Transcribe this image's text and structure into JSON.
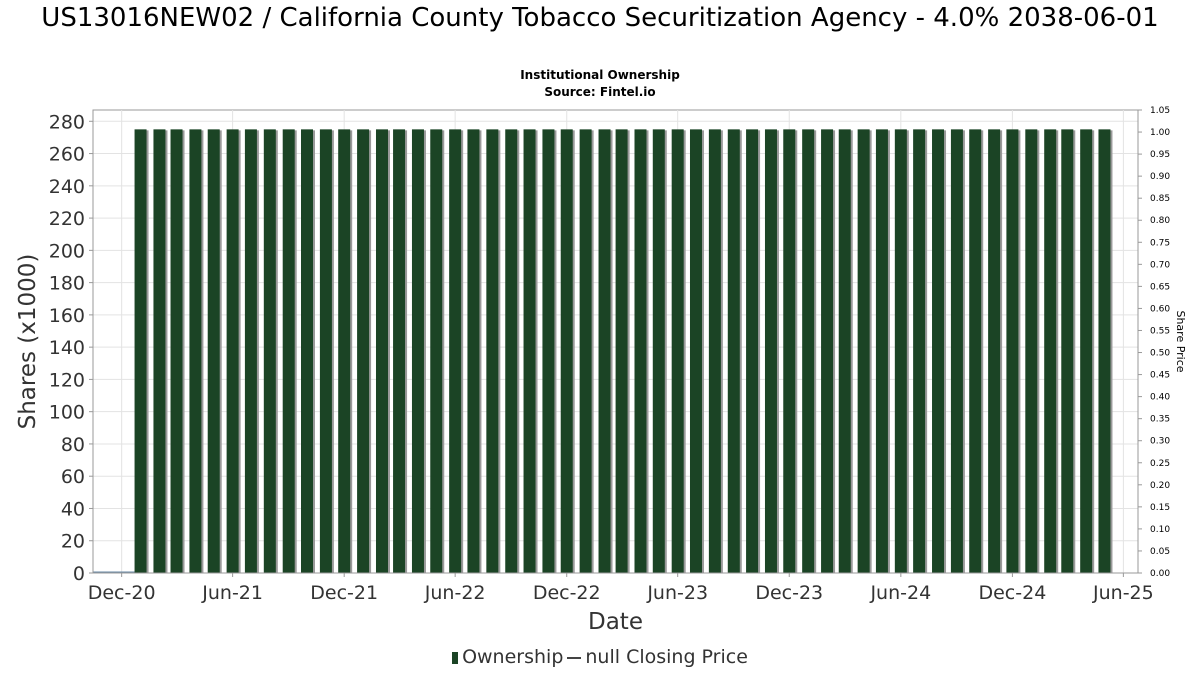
{
  "title": "US13016NEW02 / California County Tobacco Securitization Agency - 4.0% 2038-06-01",
  "subtitle_line1": "Institutional Ownership",
  "subtitle_line2": "Source: Fintel.io",
  "legend": {
    "ownership_label": "Ownership",
    "closing_price_label": "null Closing Price"
  },
  "colors": {
    "bar": "#1b4425",
    "bar_shadow": "#9a9a9a",
    "grid": "#e3e3e3",
    "axis": "#999999"
  },
  "chart_data": {
    "type": "bar",
    "title": "US13016NEW02 / California County Tobacco Securitization Agency - 4.0% 2038-06-01",
    "xlabel": "Date",
    "ylabel": "Shares (x1000)",
    "y2label": "Share Price",
    "ylim": [
      0,
      287
    ],
    "y2lim": [
      0,
      1.05
    ],
    "yticks": [
      0,
      20,
      40,
      60,
      80,
      100,
      120,
      140,
      160,
      180,
      200,
      220,
      240,
      260,
      280
    ],
    "y2ticks": [
      "0.00",
      "0.05",
      "0.10",
      "0.15",
      "0.20",
      "0.25",
      "0.30",
      "0.35",
      "0.40",
      "0.45",
      "0.50",
      "0.55",
      "0.60",
      "0.65",
      "0.70",
      "0.75",
      "0.80",
      "0.85",
      "0.90",
      "0.95",
      "1.00",
      "1.05"
    ],
    "x_start": "2020-10-15",
    "x_end": "2025-06-25",
    "xticks": [
      {
        "label": "Dec-20",
        "date": "2020-12-01"
      },
      {
        "label": "Jun-21",
        "date": "2021-06-01"
      },
      {
        "label": "Dec-21",
        "date": "2021-12-01"
      },
      {
        "label": "Jun-22",
        "date": "2022-06-01"
      },
      {
        "label": "Dec-22",
        "date": "2022-12-01"
      },
      {
        "label": "Jun-23",
        "date": "2023-06-01"
      },
      {
        "label": "Dec-23",
        "date": "2023-12-01"
      },
      {
        "label": "Jun-24",
        "date": "2024-06-01"
      },
      {
        "label": "Dec-24",
        "date": "2024-12-01"
      },
      {
        "label": "Jun-25",
        "date": "2025-06-01"
      }
    ],
    "bar_start": "2021-01-01",
    "bar_count": 53,
    "bar_interval_months": 1,
    "series": [
      {
        "name": "Ownership",
        "value_each": 275
      },
      {
        "name": "null Closing Price",
        "values": []
      }
    ]
  }
}
